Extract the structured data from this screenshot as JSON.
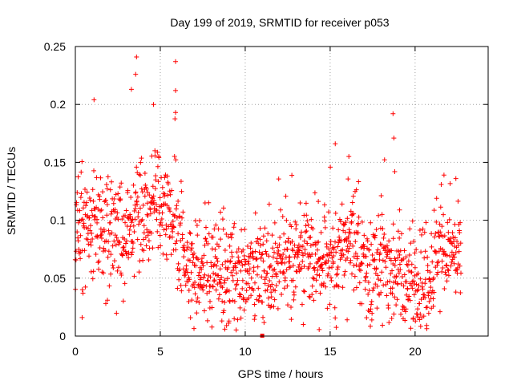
{
  "chart_data": {
    "type": "scatter",
    "title": "Day 199 of 2019, SRMTID for receiver p053",
    "xlabel": "GPS time / hours",
    "ylabel": "SRMTID / TECUs",
    "xlim": [
      0,
      24.3
    ],
    "ylim": [
      0,
      0.25
    ],
    "xticks": [
      0,
      5,
      10,
      15,
      20
    ],
    "xtick_labels": [
      "0",
      "5",
      "10",
      "15",
      "20"
    ],
    "yticks": [
      0,
      0.05,
      0.1,
      0.15,
      0.2,
      0.25
    ],
    "ytick_labels": [
      "0",
      "0.05",
      "0.1",
      "0.15",
      "0.2",
      "0.25"
    ],
    "grid": true,
    "marker": "+",
    "color": "#ff0000",
    "x_range_of_data": [
      0.0,
      22.7
    ],
    "outliers": [
      {
        "x": 3.6,
        "y": 0.241
      },
      {
        "x": 5.9,
        "y": 0.237
      },
      {
        "x": 3.55,
        "y": 0.226
      },
      {
        "x": 3.3,
        "y": 0.213
      },
      {
        "x": 5.9,
        "y": 0.212
      },
      {
        "x": 1.1,
        "y": 0.204
      },
      {
        "x": 4.6,
        "y": 0.2
      },
      {
        "x": 5.9,
        "y": 0.193
      },
      {
        "x": 18.7,
        "y": 0.192
      },
      {
        "x": 18.75,
        "y": 0.171
      },
      {
        "x": 15.3,
        "y": 0.166
      },
      {
        "x": 16.1,
        "y": 0.155
      },
      {
        "x": 8.8,
        "y": 0.006
      },
      {
        "x": 0.4,
        "y": 0.016
      },
      {
        "x": 16.0,
        "y": 0.014
      },
      {
        "x": 18.8,
        "y": 0.142
      },
      {
        "x": 21.7,
        "y": 0.139
      },
      {
        "x": 22.4,
        "y": 0.136
      }
    ],
    "trend": [
      {
        "x": 0.0,
        "y": 0.095
      },
      {
        "x": 1.0,
        "y": 0.1
      },
      {
        "x": 2.0,
        "y": 0.085
      },
      {
        "x": 3.0,
        "y": 0.1
      },
      {
        "x": 4.0,
        "y": 0.115
      },
      {
        "x": 5.0,
        "y": 0.11
      },
      {
        "x": 5.8,
        "y": 0.1
      },
      {
        "x": 6.5,
        "y": 0.06
      },
      {
        "x": 7.5,
        "y": 0.06
      },
      {
        "x": 8.5,
        "y": 0.05
      },
      {
        "x": 9.5,
        "y": 0.045
      },
      {
        "x": 10.5,
        "y": 0.06
      },
      {
        "x": 11.5,
        "y": 0.065
      },
      {
        "x": 12.5,
        "y": 0.07
      },
      {
        "x": 13.5,
        "y": 0.065
      },
      {
        "x": 14.5,
        "y": 0.065
      },
      {
        "x": 15.5,
        "y": 0.07
      },
      {
        "x": 16.2,
        "y": 0.09
      },
      {
        "x": 16.8,
        "y": 0.065
      },
      {
        "x": 17.5,
        "y": 0.06
      },
      {
        "x": 18.5,
        "y": 0.065
      },
      {
        "x": 19.5,
        "y": 0.045
      },
      {
        "x": 20.5,
        "y": 0.05
      },
      {
        "x": 21.5,
        "y": 0.075
      },
      {
        "x": 22.7,
        "y": 0.065
      }
    ],
    "spread": 0.022,
    "point_count": 1400,
    "special_points": [
      {
        "x": 11.0,
        "y": 0.0
      }
    ]
  }
}
